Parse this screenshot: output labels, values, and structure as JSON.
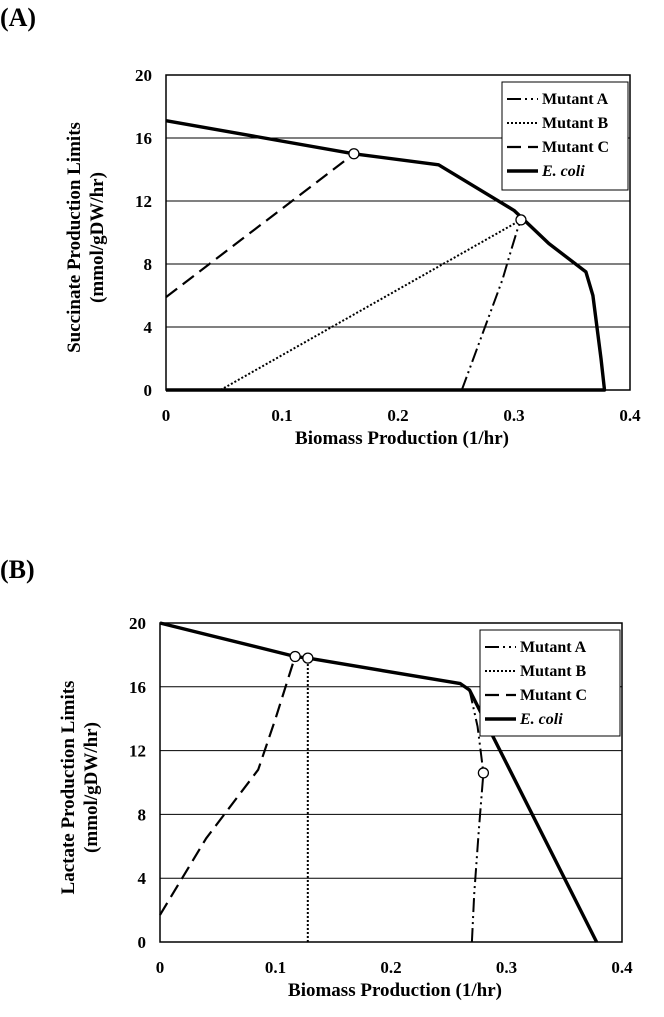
{
  "colors": {
    "ink": "#000000",
    "grid": "#000000",
    "background": "#ffffff",
    "marker_fill": "#ffffff"
  },
  "chart_data": [
    {
      "panel_label": "(A)",
      "type": "line",
      "xlabel": "Biomass Production (1/hr)",
      "ylabel_line1": "Succinate Production Limits",
      "ylabel_line2": "(mmol/gDW/hr)",
      "xlim": [
        0,
        0.4
      ],
      "ylim": [
        0,
        20
      ],
      "x_ticks": [
        "0",
        "0.1",
        "0.2",
        "0.3",
        "0.4"
      ],
      "y_ticks": [
        "0",
        "4",
        "8",
        "12",
        "16",
        "20"
      ],
      "grid": "horizontal",
      "legend_position": "top-right",
      "series": [
        {
          "name": "Mutant A",
          "style": "dashdotdot",
          "points": [
            [
              0.255,
              0
            ],
            [
              0.26,
              1
            ],
            [
              0.275,
              4
            ],
            [
              0.29,
              7
            ],
            [
              0.298,
              9
            ],
            [
              0.303,
              10.2
            ],
            [
              0.306,
              10.8
            ]
          ]
        },
        {
          "name": "Mutant B",
          "style": "dotted",
          "points": [
            [
              0.047,
              0
            ],
            [
              0.306,
              10.8
            ]
          ]
        },
        {
          "name": "Mutant C",
          "style": "dashed",
          "points": [
            [
              0,
              5.9
            ],
            [
              0.162,
              15.0
            ]
          ]
        },
        {
          "name": "E. coli",
          "style": "solid",
          "points": [
            [
              0,
              17.1
            ],
            [
              0.162,
              15.0
            ],
            [
              0.235,
              14.3
            ],
            [
              0.3,
              11.4
            ],
            [
              0.33,
              9.3
            ],
            [
              0.362,
              7.5
            ],
            [
              0.368,
              6.0
            ],
            [
              0.375,
              2.0
            ],
            [
              0.378,
              0
            ],
            [
              0,
              0
            ]
          ]
        }
      ],
      "markers": [
        [
          0.162,
          15.0
        ],
        [
          0.306,
          10.8
        ]
      ]
    },
    {
      "panel_label": "(B)",
      "type": "line",
      "xlabel": "Biomass Production (1/hr)",
      "ylabel_line1": "Lactate Production Limits",
      "ylabel_line2": "(mmol/gDW/hr)",
      "xlim": [
        0,
        0.4
      ],
      "ylim": [
        0,
        20
      ],
      "x_ticks": [
        "0",
        "0.1",
        "0.2",
        "0.3",
        "0.4"
      ],
      "y_ticks": [
        "0",
        "4",
        "8",
        "12",
        "16",
        "20"
      ],
      "grid": "horizontal",
      "legend_position": "top-right",
      "series": [
        {
          "name": "Mutant A",
          "style": "dashdotdot",
          "points": [
            [
              0.27,
              0
            ],
            [
              0.272,
              3
            ],
            [
              0.276,
              7
            ],
            [
              0.28,
              10.6
            ],
            [
              0.275,
              13.5
            ],
            [
              0.268,
              15.8
            ]
          ]
        },
        {
          "name": "Mutant B",
          "style": "dotted",
          "points": [
            [
              0.128,
              0
            ],
            [
              0.128,
              17.8
            ]
          ]
        },
        {
          "name": "Mutant C",
          "style": "dashed",
          "points": [
            [
              0,
              1.7
            ],
            [
              0.04,
              6.5
            ],
            [
              0.085,
              10.8
            ],
            [
              0.1,
              14.0
            ],
            [
              0.117,
              17.9
            ]
          ]
        },
        {
          "name": "E. coli",
          "style": "solid",
          "points": [
            [
              0,
              20
            ],
            [
              0.117,
              17.9
            ],
            [
              0.128,
              17.8
            ],
            [
              0.26,
              16.2
            ],
            [
              0.268,
              15.8
            ],
            [
              0.378,
              0
            ]
          ]
        }
      ],
      "markers": [
        [
          0.117,
          17.9
        ],
        [
          0.128,
          17.8
        ],
        [
          0.28,
          10.6
        ]
      ]
    }
  ]
}
